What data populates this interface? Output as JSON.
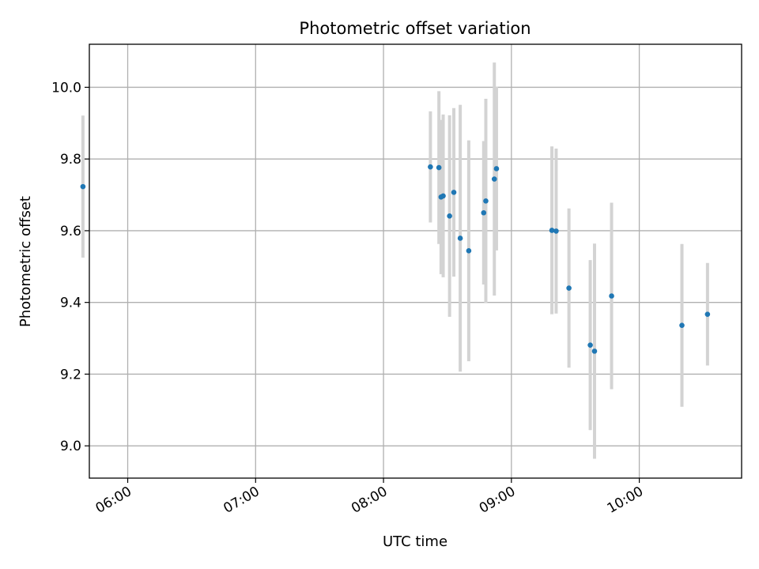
{
  "chart_data": {
    "type": "scatter",
    "title": "Photometric offset variation",
    "xlabel": "UTC time",
    "ylabel": "Photometric offset",
    "x_is_time": true,
    "xlim": [
      "05:42",
      "10:48"
    ],
    "ylim": [
      8.91,
      10.12
    ],
    "x_ticks": [
      "06:00",
      "07:00",
      "08:00",
      "09:00",
      "10:00"
    ],
    "y_ticks": [
      9.0,
      9.2,
      9.4,
      9.6,
      9.8,
      10.0
    ],
    "grid": true,
    "colors": {
      "point": "#1f77b4",
      "errorbar": "#d3d3d3",
      "grid": "#b0b0b0",
      "axes": "#000000"
    },
    "points": [
      {
        "x": "05:39",
        "y": 9.723,
        "yerr": 0.198
      },
      {
        "x": "08:22",
        "y": 9.778,
        "yerr": 0.155
      },
      {
        "x": "08:26",
        "y": 9.776,
        "yerr": 0.213
      },
      {
        "x": "08:27",
        "y": 9.694,
        "yerr": 0.215
      },
      {
        "x": "08:28",
        "y": 9.697,
        "yerr": 0.227
      },
      {
        "x": "08:31",
        "y": 9.641,
        "yerr": 0.281
      },
      {
        "x": "08:33",
        "y": 9.707,
        "yerr": 0.235
      },
      {
        "x": "08:36",
        "y": 9.579,
        "yerr": 0.372
      },
      {
        "x": "08:40",
        "y": 9.544,
        "yerr": 0.308
      },
      {
        "x": "08:47",
        "y": 9.65,
        "yerr": 0.2
      },
      {
        "x": "08:48",
        "y": 9.683,
        "yerr": 0.285
      },
      {
        "x": "08:52",
        "y": 9.744,
        "yerr": 0.325
      },
      {
        "x": "08:53",
        "y": 9.773,
        "yerr": 0.228
      },
      {
        "x": "09:19",
        "y": 9.601,
        "yerr": 0.234
      },
      {
        "x": "09:21",
        "y": 9.599,
        "yerr": 0.23
      },
      {
        "x": "09:27",
        "y": 9.44,
        "yerr": 0.222
      },
      {
        "x": "09:37",
        "y": 9.281,
        "yerr": 0.237
      },
      {
        "x": "09:39",
        "y": 9.264,
        "yerr": 0.3
      },
      {
        "x": "09:47",
        "y": 9.418,
        "yerr": 0.26
      },
      {
        "x": "10:20",
        "y": 9.336,
        "yerr": 0.227
      },
      {
        "x": "10:32",
        "y": 9.367,
        "yerr": 0.143
      }
    ]
  }
}
